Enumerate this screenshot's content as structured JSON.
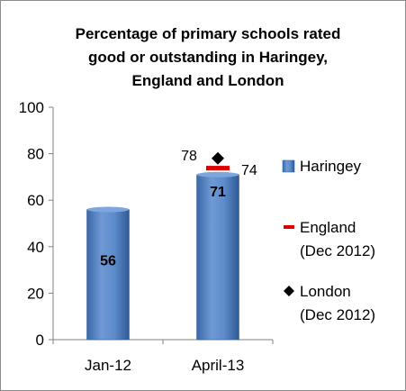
{
  "chart_data": {
    "type": "bar",
    "title": [
      "Percentage of primary schools rated",
      "good or outstanding in Haringey,",
      "England and London"
    ],
    "categories": [
      "Jan-12",
      "April-13"
    ],
    "ylim": [
      0,
      100
    ],
    "yticks": [
      0,
      20,
      40,
      60,
      80,
      100
    ],
    "grid": false,
    "legend_position": "right",
    "series": [
      {
        "name": "Haringey",
        "kind": "bar",
        "values": [
          56,
          71
        ],
        "labels": [
          "56",
          "71"
        ],
        "color": "#4f81bd"
      },
      {
        "name": "England",
        "name_line2": "(Dec 2012)",
        "kind": "dash-marker",
        "values": [
          null,
          74
        ],
        "labels": [
          "",
          "74"
        ],
        "color": "#e00000"
      },
      {
        "name": "London",
        "name_line2": "(Dec 2012)",
        "kind": "diamond-marker",
        "values": [
          null,
          78
        ],
        "labels": [
          "",
          "78"
        ],
        "color": "#000000"
      }
    ]
  }
}
